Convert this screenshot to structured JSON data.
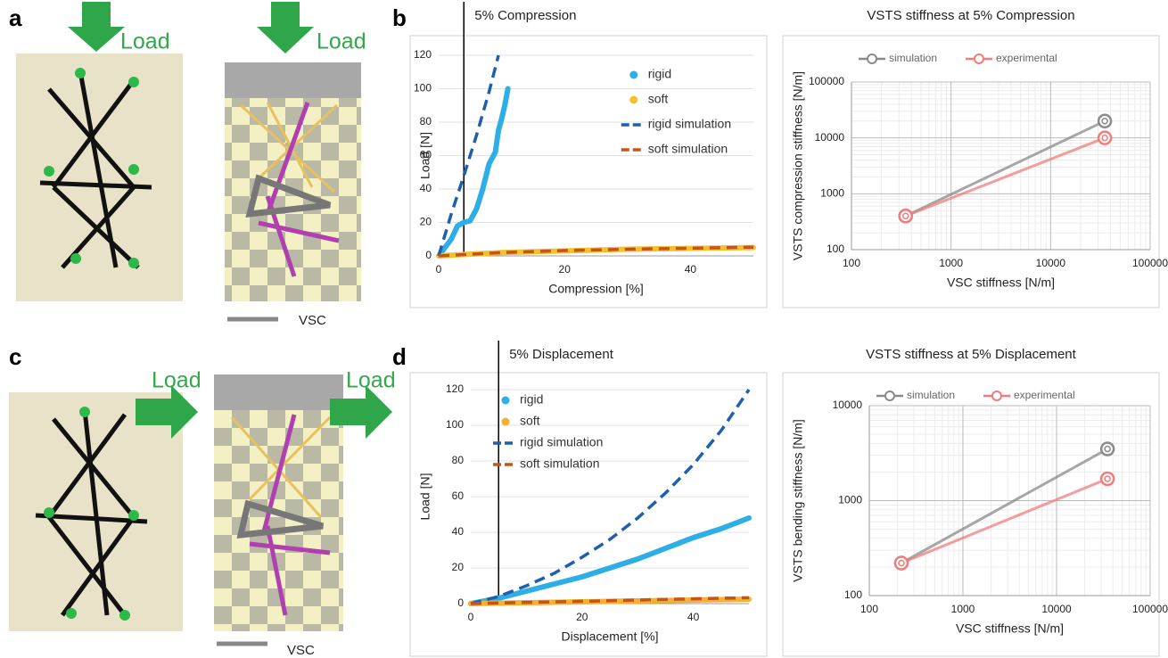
{
  "panel_labels": [
    "a",
    "b",
    "c",
    "d"
  ],
  "load_labels": [
    "Load",
    "Load",
    "Load",
    "Load"
  ],
  "vsc_labels": [
    "VSC",
    "VSC"
  ],
  "chart_data": [
    {
      "type": "line",
      "xlabel": "Compression [%]",
      "ylabel": "Load [N]",
      "annotation": {
        "text": "5% Compression",
        "x": 4
      },
      "xlim": [
        0,
        50
      ],
      "xticks": [
        0,
        20,
        40
      ],
      "ylim": [
        0,
        120
      ],
      "yticks": [
        0,
        20,
        40,
        60,
        80,
        100,
        120
      ],
      "grid": true,
      "legend": "right",
      "series": [
        {
          "name": "rigid",
          "color": "#2eaee6",
          "style": "dots",
          "x": [
            0,
            2,
            3,
            4,
            5,
            6,
            7,
            8,
            9,
            9.5,
            10,
            10.5,
            11
          ],
          "values": [
            0,
            10,
            18,
            20,
            21,
            28,
            40,
            55,
            62,
            75,
            82,
            90,
            100
          ]
        },
        {
          "name": "soft",
          "color": "#f4c02e",
          "style": "dots",
          "x": [
            0,
            10,
            20,
            30,
            40,
            50
          ],
          "values": [
            0,
            2,
            3,
            4,
            4.5,
            5
          ]
        },
        {
          "name": "rigid simulation",
          "color": "#1f5fae",
          "style": "dashed",
          "x": [
            0,
            2,
            4,
            6,
            8,
            9.5
          ],
          "values": [
            0,
            25,
            48,
            72,
            98,
            120
          ]
        },
        {
          "name": "soft simulation",
          "color": "#c5541b",
          "style": "dashed",
          "x": [
            0,
            10,
            20,
            30,
            40,
            50
          ],
          "values": [
            0,
            2,
            3.2,
            4,
            4.6,
            5.2
          ]
        }
      ]
    },
    {
      "type": "line",
      "title": "VSTS stiffness at 5% Compression",
      "xlabel": "VSC  stiffness [N/m]",
      "ylabel": "VSTS   compression stiffness [N/m]",
      "log_scale": true,
      "grid": true,
      "legend": "top",
      "xlim": [
        100,
        100000
      ],
      "xticks": [
        100,
        1000,
        10000,
        100000
      ],
      "ylim": [
        100,
        100000
      ],
      "yticks": [
        100,
        1000,
        10000,
        100000
      ],
      "series": [
        {
          "name": "simulation",
          "color": "#8a8a8a",
          "style": "line-marker",
          "x": [
            350,
            35000
          ],
          "values": [
            400,
            20000
          ]
        },
        {
          "name": "experimental",
          "color": "#f07c7c",
          "style": "line-marker",
          "x": [
            350,
            35000
          ],
          "values": [
            400,
            10000
          ]
        }
      ]
    },
    {
      "type": "line",
      "xlabel": "Displacement [%]",
      "ylabel": "Load [N]",
      "annotation": {
        "text": "5% Displacement",
        "x": 5
      },
      "xlim": [
        0,
        50
      ],
      "xticks": [
        0,
        20,
        40
      ],
      "ylim": [
        0,
        120
      ],
      "yticks": [
        0,
        20,
        40,
        60,
        80,
        100,
        120
      ],
      "grid": true,
      "legend": "upper left",
      "series": [
        {
          "name": "rigid",
          "color": "#2eaee6",
          "style": "dots",
          "x": [
            0,
            5,
            10,
            15,
            20,
            25,
            30,
            35,
            40,
            45,
            50
          ],
          "values": [
            0,
            3,
            7,
            11,
            15,
            20,
            25,
            31,
            37,
            42,
            48
          ]
        },
        {
          "name": "soft",
          "color": "#f4b02e",
          "style": "dots",
          "x": [
            0,
            10,
            20,
            30,
            40,
            50
          ],
          "values": [
            0,
            0.5,
            1,
            1.5,
            2,
            2.5
          ]
        },
        {
          "name": "rigid simulation",
          "color": "#1f5fae",
          "style": "dashed",
          "x": [
            0,
            5,
            10,
            15,
            20,
            25,
            30,
            35,
            40,
            45,
            50
          ],
          "values": [
            0,
            4,
            10,
            17,
            26,
            36,
            48,
            62,
            78,
            97,
            120
          ]
        },
        {
          "name": "soft simulation",
          "color": "#c5541b",
          "style": "dashed",
          "x": [
            0,
            10,
            20,
            30,
            40,
            50
          ],
          "values": [
            0,
            0.7,
            1.3,
            2,
            2.7,
            3.3
          ]
        }
      ]
    },
    {
      "type": "line",
      "title": "VSTS stiffness at 5% Displacement",
      "xlabel": "VSC  stiffness [N/m]",
      "ylabel": "VSTS   bending stiffness [N/m]",
      "log_scale": true,
      "grid": true,
      "legend": "top",
      "xlim": [
        100,
        100000
      ],
      "xticks": [
        100,
        1000,
        10000,
        100000
      ],
      "ylim": [
        100,
        10000
      ],
      "yticks": [
        100,
        1000,
        10000
      ],
      "series": [
        {
          "name": "simulation",
          "color": "#8a8a8a",
          "style": "line-marker",
          "x": [
            220,
            35000
          ],
          "values": [
            220,
            3500
          ]
        },
        {
          "name": "experimental",
          "color": "#f07c7c",
          "style": "line-marker",
          "x": [
            220,
            35000
          ],
          "values": [
            220,
            1700
          ]
        }
      ]
    }
  ]
}
